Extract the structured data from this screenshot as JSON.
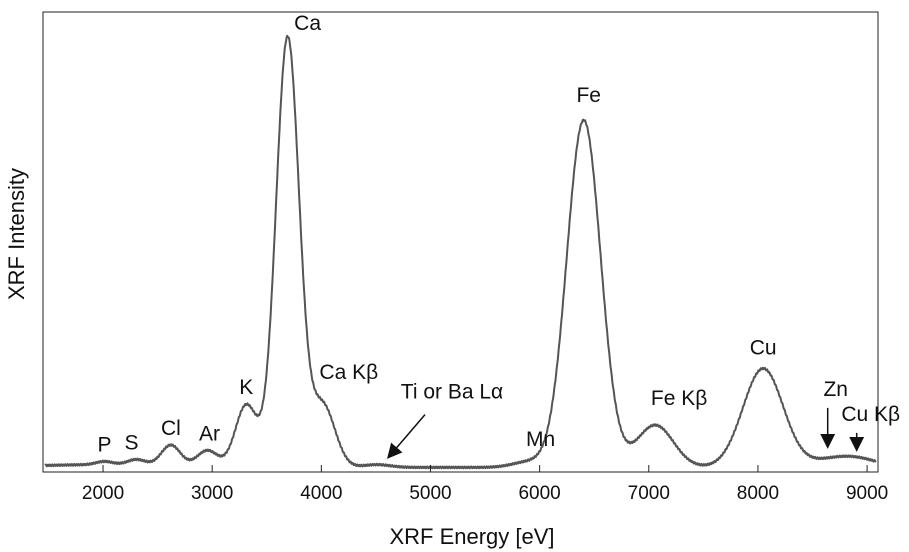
{
  "chart_data": {
    "type": "line",
    "title": "",
    "xlabel": "XRF Energy [eV]",
    "ylabel": "XRF Intensity",
    "xlim": [
      1450,
      9100
    ],
    "ylim": [
      0,
      1
    ],
    "x_ticks": [
      2000,
      3000,
      4000,
      5000,
      6000,
      7000,
      8000,
      9000
    ],
    "grid": false,
    "legend": "none",
    "line_color": "#555555",
    "baseline": 0.01,
    "peaks": [
      {
        "label": "P",
        "energy": 2013,
        "intensity": 0.007
      },
      {
        "label": "S",
        "energy": 2307,
        "intensity": 0.012
      },
      {
        "label": "Cl",
        "energy": 2622,
        "intensity": 0.045
      },
      {
        "label": "Ar",
        "energy": 2957,
        "intensity": 0.035
      },
      {
        "label": "K",
        "energy": 3313,
        "intensity": 0.135
      },
      {
        "label": "Ca",
        "energy": 3691,
        "intensity": 0.935
      },
      {
        "label": "Ca Kβ",
        "energy": 4013,
        "intensity": 0.135
      },
      {
        "label": "Ti or Ba Lα",
        "energy": 4510,
        "intensity": 0.006
      },
      {
        "label": "Mn",
        "energy": 5899,
        "intensity": 0.012
      },
      {
        "label": "Fe",
        "energy": 6404,
        "intensity": 0.755
      },
      {
        "label": "Fe Kβ",
        "energy": 7058,
        "intensity": 0.092
      },
      {
        "label": "Cu",
        "energy": 8048,
        "intensity": 0.215
      },
      {
        "label": "Zn",
        "energy": 8639,
        "intensity": 0.012
      },
      {
        "label": "Cu Kβ",
        "energy": 8905,
        "intensity": 0.018
      }
    ]
  }
}
